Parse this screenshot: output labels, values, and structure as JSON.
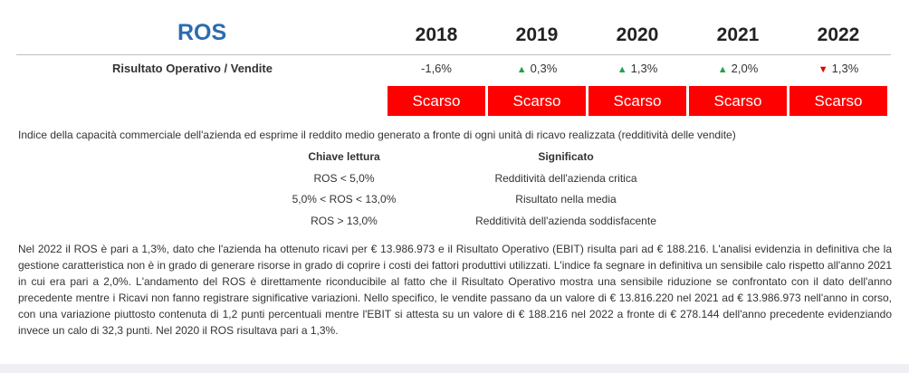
{
  "title": "ROS",
  "years": [
    "2018",
    "2019",
    "2020",
    "2021",
    "2022"
  ],
  "metric_label": "Risultato Operativo / Vendite",
  "values": [
    {
      "trend": "",
      "text": "-1,6%"
    },
    {
      "trend": "▲",
      "text": "0,3%"
    },
    {
      "trend": "▲",
      "text": "1,3%"
    },
    {
      "trend": "▲",
      "text": "2,0%"
    },
    {
      "trend": "▼",
      "text": "1,3%"
    }
  ],
  "ratings": [
    "Scarso",
    "Scarso",
    "Scarso",
    "Scarso",
    "Scarso"
  ],
  "colors": {
    "title": "#2b6cb0",
    "rating_bg": "#ff0000",
    "up": "#21a345",
    "down": "#e10000"
  },
  "description": "Indice della capacità commerciale dell'azienda ed esprime il reddito medio generato a fronte di ogni unità di ricavo realizzata (redditività delle vendite)",
  "key": {
    "header_key": "Chiave lettura",
    "header_meaning": "Significato",
    "rows": [
      {
        "key": "ROS < 5,0%",
        "meaning": "Redditività dell'azienda critica"
      },
      {
        "key": "5,0% < ROS < 13,0%",
        "meaning": "Risultato nella media"
      },
      {
        "key": "ROS > 13,0%",
        "meaning": "Redditività dell'azienda soddisfacente"
      }
    ]
  },
  "analysis": "Nel 2022 il ROS è pari a 1,3%, dato che l'azienda ha ottenuto ricavi per € 13.986.973 e il Risultato Operativo (EBIT) risulta pari ad € 188.216. L'analisi evidenzia in definitiva che la gestione caratteristica non è in grado di generare risorse in grado di coprire i costi dei fattori produttivi utilizzati. L'indice fa segnare in definitiva un sensibile calo rispetto all'anno 2021 in cui era pari a 2,0%. L'andamento del ROS è direttamente riconducibile al fatto che il Risultato Operativo mostra una sensibile riduzione se confrontato con il dato dell'anno precedente mentre i Ricavi non fanno registrare significative variazioni. Nello specifico, le vendite passano da un valore di € 13.816.220 nel 2021 ad € 13.986.973 nell'anno in corso, con una variazione piuttosto contenuta di 1,2 punti percentuali mentre l'EBIT si attesta su un valore di € 188.216 nel 2022 a fronte di € 278.144 dell'anno precedente evidenziando invece un calo di 32,3 punti. Nel 2020 il ROS risultava pari a 1,3%."
}
